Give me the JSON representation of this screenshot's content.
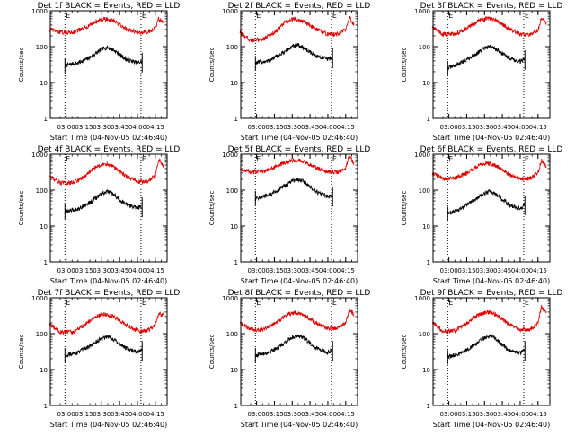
{
  "colors": {
    "events": "#000000",
    "lld": "#dd0000",
    "axis": "#000000",
    "marker": "#000000"
  },
  "chart_data": [
    {
      "type": "line",
      "title": "Det 1f BLACK = Events, RED = LLD",
      "ylabel": "Counts/sec",
      "xlabel": "Start Time (04-Nov-05 02:46:40)",
      "x_tick_labels": [
        "03:00",
        "03:15",
        "03:30",
        "03:45",
        "04:00",
        "04:15"
      ],
      "y_tick_labels": [
        "1",
        "10",
        "100",
        "1000"
      ],
      "ylim": [
        1,
        1000
      ],
      "yscale": "log",
      "markers": [
        {
          "label": "E",
          "time": "02:59"
        },
        {
          "label": "E",
          "time": "04:03"
        }
      ],
      "series": [
        {
          "name": "Events",
          "color": "#000000",
          "x": [
            "02:59",
            "03:10",
            "03:20",
            "03:30",
            "03:35",
            "03:40",
            "03:50",
            "04:00",
            "04:04"
          ],
          "y": [
            30,
            35,
            50,
            85,
            95,
            80,
            45,
            35,
            38
          ]
        },
        {
          "name": "LLD",
          "color": "#dd0000",
          "x": [
            "02:46",
            "02:55",
            "03:05",
            "03:15",
            "03:25",
            "03:32",
            "03:40",
            "03:50",
            "04:00",
            "04:08",
            "04:15",
            "04:18",
            "04:22"
          ],
          "y": [
            300,
            250,
            250,
            320,
            500,
            600,
            520,
            320,
            250,
            250,
            330,
            600,
            450
          ]
        }
      ]
    },
    {
      "type": "line",
      "title": "Det 2f BLACK = Events, RED = LLD",
      "ylabel": "Counts/sec",
      "xlabel": "Start Time (04-Nov-05 02:46:40)",
      "x_tick_labels": [
        "03:00",
        "03:15",
        "03:30",
        "03:45",
        "04:00",
        "04:15"
      ],
      "y_tick_labels": [
        "1",
        "10",
        "100",
        "1000"
      ],
      "ylim": [
        1,
        1000
      ],
      "yscale": "log",
      "markers": [
        {
          "label": "E",
          "time": "02:59"
        },
        {
          "label": "E",
          "time": "04:03"
        }
      ],
      "series": [
        {
          "name": "Events",
          "color": "#000000",
          "x": [
            "02:59",
            "03:10",
            "03:20",
            "03:30",
            "03:35",
            "03:40",
            "03:50",
            "04:00",
            "04:04"
          ],
          "y": [
            35,
            40,
            60,
            100,
            110,
            90,
            55,
            45,
            50
          ]
        },
        {
          "name": "LLD",
          "color": "#dd0000",
          "x": [
            "02:46",
            "02:55",
            "03:05",
            "03:15",
            "03:25",
            "03:32",
            "03:40",
            "03:50",
            "04:00",
            "04:08",
            "04:15",
            "04:18",
            "04:22"
          ],
          "y": [
            250,
            150,
            160,
            250,
            500,
            600,
            500,
            300,
            220,
            220,
            300,
            700,
            400
          ]
        }
      ]
    },
    {
      "type": "line",
      "title": "Det 3f BLACK = Events, RED = LLD",
      "ylabel": "Counts/sec",
      "xlabel": "Start Time (04-Nov-05 02:46:40)",
      "x_tick_labels": [
        "03:00",
        "03:15",
        "03:30",
        "03:45",
        "04:00",
        "04:15"
      ],
      "y_tick_labels": [
        "1",
        "10",
        "100",
        "1000"
      ],
      "ylim": [
        1,
        1000
      ],
      "yscale": "log",
      "markers": [
        {
          "label": "E",
          "time": "02:59"
        },
        {
          "label": "E",
          "time": "04:03"
        }
      ],
      "series": [
        {
          "name": "Events",
          "color": "#000000",
          "x": [
            "02:59",
            "03:10",
            "03:20",
            "03:30",
            "03:35",
            "03:40",
            "03:50",
            "04:00",
            "04:04"
          ],
          "y": [
            25,
            35,
            55,
            90,
            100,
            85,
            50,
            38,
            45
          ]
        },
        {
          "name": "LLD",
          "color": "#dd0000",
          "x": [
            "02:46",
            "02:55",
            "03:05",
            "03:15",
            "03:25",
            "03:32",
            "03:40",
            "03:50",
            "04:00",
            "04:08",
            "04:15",
            "04:18",
            "04:22"
          ],
          "y": [
            350,
            220,
            230,
            320,
            520,
            620,
            540,
            320,
            220,
            210,
            280,
            650,
            450
          ]
        }
      ]
    },
    {
      "type": "line",
      "title": "Det 4f BLACK = Events, RED = LLD",
      "ylabel": "Counts/sec",
      "xlabel": "Start Time (04-Nov-05 02:46:40)",
      "x_tick_labels": [
        "03:00",
        "03:15",
        "03:30",
        "03:45",
        "04:00",
        "04:15"
      ],
      "y_tick_labels": [
        "1",
        "10",
        "100",
        "1000"
      ],
      "ylim": [
        1,
        1000
      ],
      "yscale": "log",
      "markers": [
        {
          "label": "E",
          "time": "02:59"
        },
        {
          "label": "E",
          "time": "04:03"
        }
      ],
      "series": [
        {
          "name": "Events",
          "color": "#000000",
          "x": [
            "02:59",
            "03:10",
            "03:20",
            "03:30",
            "03:35",
            "03:40",
            "03:50",
            "04:00",
            "04:04"
          ],
          "y": [
            25,
            30,
            45,
            80,
            90,
            75,
            40,
            32,
            35
          ]
        },
        {
          "name": "LLD",
          "color": "#dd0000",
          "x": [
            "02:46",
            "02:55",
            "03:05",
            "03:15",
            "03:25",
            "03:32",
            "03:40",
            "03:50",
            "04:00",
            "04:08",
            "04:15",
            "04:18",
            "04:22"
          ],
          "y": [
            250,
            160,
            160,
            230,
            450,
            550,
            450,
            250,
            170,
            170,
            250,
            700,
            450
          ]
        }
      ]
    },
    {
      "type": "line",
      "title": "Det 5f BLACK = Events, RED = LLD",
      "ylabel": "Counts/sec",
      "xlabel": "Start Time (04-Nov-05 02:46:40)",
      "x_tick_labels": [
        "03:00",
        "03:15",
        "03:30",
        "03:45",
        "04:00",
        "04:15"
      ],
      "y_tick_labels": [
        "1",
        "10",
        "100",
        "1000"
      ],
      "ylim": [
        1,
        1000
      ],
      "yscale": "log",
      "markers": [
        {
          "label": "E",
          "time": "02:59"
        },
        {
          "label": "E",
          "time": "04:03"
        }
      ],
      "series": [
        {
          "name": "Events",
          "color": "#000000",
          "x": [
            "02:59",
            "03:10",
            "03:20",
            "03:30",
            "03:35",
            "03:40",
            "03:50",
            "04:00",
            "04:04"
          ],
          "y": [
            60,
            70,
            110,
            180,
            200,
            170,
            90,
            65,
            70
          ]
        },
        {
          "name": "LLD",
          "color": "#dd0000",
          "x": [
            "02:46",
            "02:55",
            "03:05",
            "03:15",
            "03:25",
            "03:32",
            "03:40",
            "03:50",
            "04:00",
            "04:08",
            "04:15",
            "04:18",
            "04:22"
          ],
          "y": [
            400,
            320,
            330,
            430,
            600,
            680,
            620,
            420,
            320,
            310,
            400,
            900,
            550
          ]
        }
      ]
    },
    {
      "type": "line",
      "title": "Det 6f BLACK = Events, RED = LLD",
      "ylabel": "Counts/sec",
      "xlabel": "Start Time (04-Nov-05 02:46:40)",
      "x_tick_labels": [
        "03:00",
        "03:15",
        "03:30",
        "03:45",
        "04:00",
        "04:15"
      ],
      "y_tick_labels": [
        "1",
        "10",
        "100",
        "1000"
      ],
      "ylim": [
        1,
        1000
      ],
      "yscale": "log",
      "markers": [
        {
          "label": "E",
          "time": "02:59"
        },
        {
          "label": "E",
          "time": "04:03"
        }
      ],
      "series": [
        {
          "name": "Events",
          "color": "#000000",
          "x": [
            "02:59",
            "03:10",
            "03:20",
            "03:30",
            "03:35",
            "03:40",
            "03:50",
            "04:00",
            "04:04"
          ],
          "y": [
            22,
            30,
            50,
            80,
            95,
            75,
            40,
            30,
            40
          ]
        },
        {
          "name": "LLD",
          "color": "#dd0000",
          "x": [
            "02:46",
            "02:55",
            "03:05",
            "03:15",
            "03:25",
            "03:32",
            "03:40",
            "03:50",
            "04:00",
            "04:08",
            "04:15",
            "04:18",
            "04:22"
          ],
          "y": [
            300,
            210,
            210,
            300,
            480,
            560,
            480,
            280,
            210,
            210,
            300,
            700,
            450
          ]
        }
      ]
    },
    {
      "type": "line",
      "title": "Det 7f BLACK = Events, RED = LLD",
      "ylabel": "Counts/sec",
      "xlabel": "Start Time (04-Nov-05 02:46:40)",
      "x_tick_labels": [
        "03:00",
        "03:15",
        "03:30",
        "03:45",
        "04:00",
        "04:15"
      ],
      "y_tick_labels": [
        "1",
        "10",
        "100",
        "1000"
      ],
      "ylim": [
        1,
        1000
      ],
      "yscale": "log",
      "markers": [
        {
          "label": "E",
          "time": "02:59"
        },
        {
          "label": "E",
          "time": "04:03"
        }
      ],
      "series": [
        {
          "name": "Events",
          "color": "#000000",
          "x": [
            "02:59",
            "03:10",
            "03:20",
            "03:30",
            "03:35",
            "03:40",
            "03:50",
            "04:00",
            "04:04"
          ],
          "y": [
            25,
            30,
            45,
            75,
            85,
            70,
            40,
            30,
            35
          ]
        },
        {
          "name": "LLD",
          "color": "#dd0000",
          "x": [
            "02:46",
            "02:55",
            "03:05",
            "03:15",
            "03:25",
            "03:32",
            "03:40",
            "03:50",
            "04:00",
            "04:08",
            "04:15",
            "04:18",
            "04:22"
          ],
          "y": [
            180,
            110,
            110,
            170,
            300,
            350,
            300,
            180,
            120,
            120,
            170,
            380,
            320
          ]
        }
      ]
    },
    {
      "type": "line",
      "title": "Det 8f BLACK = Events, RED = LLD",
      "ylabel": "Counts/sec",
      "xlabel": "Start Time (04-Nov-05 02:46:40)",
      "x_tick_labels": [
        "03:00",
        "03:15",
        "03:30",
        "03:45",
        "04:00",
        "04:15"
      ],
      "y_tick_labels": [
        "1",
        "10",
        "100",
        "1000"
      ],
      "ylim": [
        1,
        1000
      ],
      "yscale": "log",
      "markers": [
        {
          "label": "E",
          "time": "02:59"
        },
        {
          "label": "E",
          "time": "04:03"
        }
      ],
      "series": [
        {
          "name": "Events",
          "color": "#000000",
          "x": [
            "02:59",
            "03:10",
            "03:20",
            "03:30",
            "03:35",
            "03:40",
            "03:50",
            "04:00",
            "04:04"
          ],
          "y": [
            25,
            30,
            45,
            80,
            90,
            75,
            40,
            30,
            35
          ]
        },
        {
          "name": "LLD",
          "color": "#dd0000",
          "x": [
            "02:46",
            "02:55",
            "03:05",
            "03:15",
            "03:25",
            "03:32",
            "03:40",
            "03:50",
            "04:00",
            "04:08",
            "04:15",
            "04:18",
            "04:22"
          ],
          "y": [
            200,
            130,
            130,
            190,
            330,
            390,
            330,
            200,
            140,
            140,
            190,
            450,
            350
          ]
        }
      ]
    },
    {
      "type": "line",
      "title": "Det 9f BLACK = Events, RED = LLD",
      "ylabel": "Counts/sec",
      "xlabel": "Start Time (04-Nov-05 02:46:40)",
      "x_tick_labels": [
        "03:00",
        "03:15",
        "03:30",
        "03:45",
        "04:00",
        "04:15"
      ],
      "y_tick_labels": [
        "1",
        "10",
        "100",
        "1000"
      ],
      "ylim": [
        1,
        1000
      ],
      "yscale": "log",
      "markers": [
        {
          "label": "E",
          "time": "02:59"
        },
        {
          "label": "E",
          "time": "04:03"
        }
      ],
      "series": [
        {
          "name": "Events",
          "color": "#000000",
          "x": [
            "02:59",
            "03:10",
            "03:20",
            "03:30",
            "03:35",
            "03:40",
            "03:50",
            "04:00",
            "04:04"
          ],
          "y": [
            22,
            28,
            45,
            75,
            90,
            70,
            35,
            28,
            35
          ]
        },
        {
          "name": "LLD",
          "color": "#dd0000",
          "x": [
            "02:46",
            "02:55",
            "03:05",
            "03:15",
            "03:25",
            "03:32",
            "03:40",
            "03:50",
            "04:00",
            "04:08",
            "04:15",
            "04:18",
            "04:22"
          ],
          "y": [
            200,
            120,
            120,
            190,
            340,
            400,
            340,
            190,
            130,
            130,
            200,
            550,
            400
          ]
        }
      ]
    }
  ]
}
